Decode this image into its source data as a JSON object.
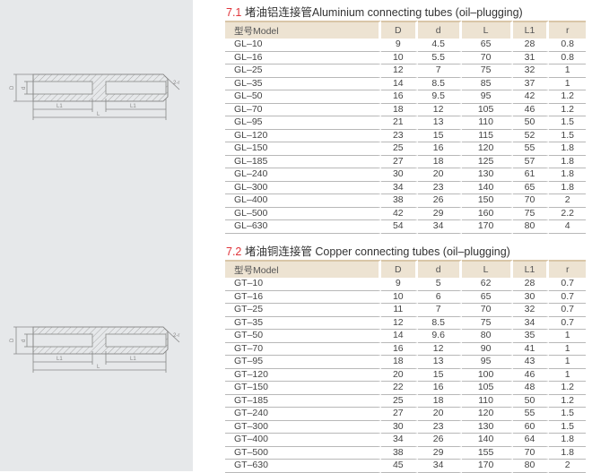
{
  "drawing_labels": {
    "D": "D",
    "d": "d",
    "L1": "L1",
    "L": "L",
    "r": "2-r"
  },
  "aluminium": {
    "num": "7.1",
    "title": " 堵油铝连接管Aluminium connecting  tubes (oil–plugging)",
    "headers": [
      "型号Model",
      "D",
      "d",
      "L",
      "L1",
      "r"
    ],
    "rows": [
      [
        "GL–10",
        "9",
        "4.5",
        "65",
        "28",
        "0.8"
      ],
      [
        "GL–16",
        "10",
        "5.5",
        "70",
        "31",
        "0.8"
      ],
      [
        "GL–25",
        "12",
        "7",
        "75",
        "32",
        "1"
      ],
      [
        "GL–35",
        "14",
        "8.5",
        "85",
        "37",
        "1"
      ],
      [
        "GL–50",
        "16",
        "9.5",
        "95",
        "42",
        "1.2"
      ],
      [
        "GL–70",
        "18",
        "12",
        "105",
        "46",
        "1.2"
      ],
      [
        "GL–95",
        "21",
        "13",
        "110",
        "50",
        "1.5"
      ],
      [
        "GL–120",
        "23",
        "15",
        "115",
        "52",
        "1.5"
      ],
      [
        "GL–150",
        "25",
        "16",
        "120",
        "55",
        "1.8"
      ],
      [
        "GL–185",
        "27",
        "18",
        "125",
        "57",
        "1.8"
      ],
      [
        "GL–240",
        "30",
        "20",
        "130",
        "61",
        "1.8"
      ],
      [
        "GL–300",
        "34",
        "23",
        "140",
        "65",
        "1.8"
      ],
      [
        "GL–400",
        "38",
        "26",
        "150",
        "70",
        "2"
      ],
      [
        "GL–500",
        "42",
        "29",
        "160",
        "75",
        "2.2"
      ],
      [
        "GL–630",
        "54",
        "34",
        "170",
        "80",
        "4"
      ]
    ]
  },
  "copper": {
    "num": "7.2",
    "title": " 堵油铜连接管 Copper connecting tubes (oil–plugging)",
    "headers": [
      "型号Model",
      "D",
      "d",
      "L",
      "L1",
      "r"
    ],
    "rows": [
      [
        "GT–10",
        "9",
        "5",
        "62",
        "28",
        "0.7"
      ],
      [
        "GT–16",
        "10",
        "6",
        "65",
        "30",
        "0.7"
      ],
      [
        "GT–25",
        "11",
        "7",
        "70",
        "32",
        "0.7"
      ],
      [
        "GT–35",
        "12",
        "8.5",
        "75",
        "34",
        "0.7"
      ],
      [
        "GT–50",
        "14",
        "9.6",
        "80",
        "35",
        "1"
      ],
      [
        "GT–70",
        "16",
        "12",
        "90",
        "41",
        "1"
      ],
      [
        "GT–95",
        "18",
        "13",
        "95",
        "43",
        "1"
      ],
      [
        "GT–120",
        "20",
        "15",
        "100",
        "46",
        "1"
      ],
      [
        "GT–150",
        "22",
        "16",
        "105",
        "48",
        "1.2"
      ],
      [
        "GT–185",
        "25",
        "18",
        "110",
        "50",
        "1.2"
      ],
      [
        "GT–240",
        "27",
        "20",
        "120",
        "55",
        "1.5"
      ],
      [
        "GT–300",
        "30",
        "23",
        "130",
        "60",
        "1.5"
      ],
      [
        "GT–400",
        "34",
        "26",
        "140",
        "64",
        "1.8"
      ],
      [
        "GT–500",
        "38",
        "29",
        "155",
        "70",
        "1.8"
      ],
      [
        "GT–630",
        "45",
        "34",
        "170",
        "80",
        "2"
      ]
    ]
  }
}
